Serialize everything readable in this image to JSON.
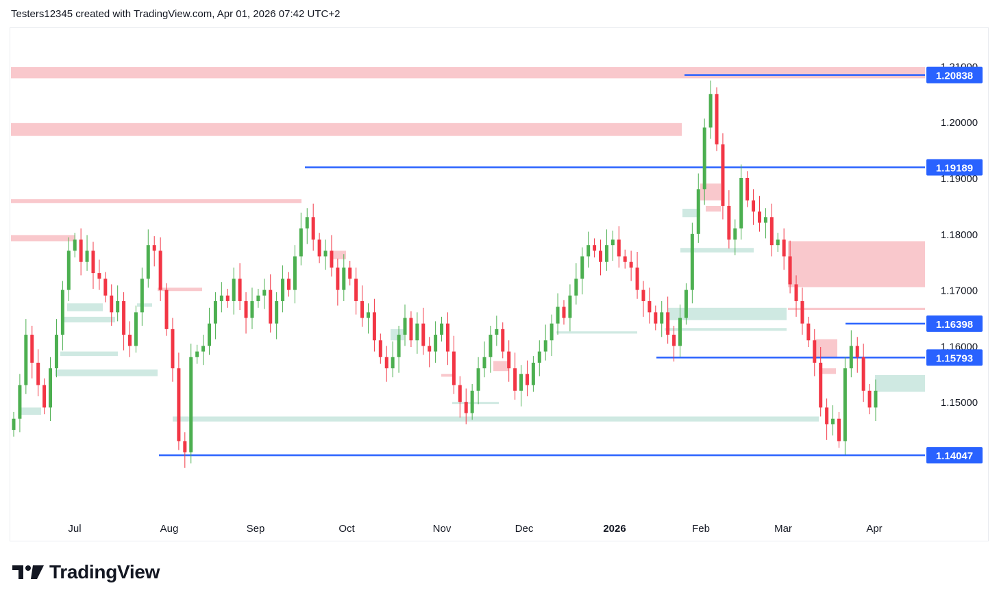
{
  "header": {
    "text": "Testers12345 created with TradingView.com, Apr 01, 2026 07:42 UTC+2"
  },
  "logo": {
    "text": "TradingView",
    "icon": "tradingview-logo-icon"
  },
  "colors": {
    "up": "#4caf50",
    "down": "#f23645",
    "level_line": "#2962ff",
    "supply_zone": "#f9c8cc",
    "demand_zone": "#cfe9e2",
    "axis_text": "#131722"
  },
  "chart_data": {
    "type": "candlestick",
    "symbol_scale": "price",
    "ylim": [
      1.135,
      1.215
    ],
    "y_ticks": [
      "1.21000",
      "1.20000",
      "1.19000",
      "1.18000",
      "1.17000",
      "1.16000",
      "1.15000"
    ],
    "x_ticks": [
      {
        "label": "Jul",
        "bold": false
      },
      {
        "label": "Aug",
        "bold": false
      },
      {
        "label": "Sep",
        "bold": false
      },
      {
        "label": "Oct",
        "bold": false
      },
      {
        "label": "Nov",
        "bold": false
      },
      {
        "label": "Dec",
        "bold": false
      },
      {
        "label": "2026",
        "bold": true
      },
      {
        "label": "Feb",
        "bold": false
      },
      {
        "label": "Mar",
        "bold": false
      },
      {
        "label": "Apr",
        "bold": false
      }
    ],
    "price_labels": [
      "1.20838",
      "1.19189",
      "1.16398",
      "1.15793",
      "1.14047"
    ],
    "levels": [
      {
        "label": "1.20838",
        "price": 1.20838,
        "start_date": "2026-01-28"
      },
      {
        "label": "1.19189",
        "price": 1.19189,
        "start_date": "2025-09-17"
      },
      {
        "label": "1.16398",
        "price": 1.16398,
        "start_date": "2026-03-25"
      },
      {
        "label": "1.15793",
        "price": 1.15793,
        "start_date": "2026-01-19"
      },
      {
        "label": "1.14047",
        "price": 1.14047,
        "start_date": "2025-08-01"
      }
    ],
    "close_series": [
      1.147,
      1.153,
      1.162,
      1.157,
      1.153,
      1.149,
      1.156,
      1.162,
      1.17,
      1.177,
      1.179,
      1.175,
      1.177,
      1.173,
      1.172,
      1.169,
      1.166,
      1.168,
      1.162,
      1.16,
      1.166,
      1.172,
      1.178,
      1.177,
      1.17,
      1.163,
      1.156,
      1.143,
      1.141,
      1.158,
      1.159,
      1.16,
      1.164,
      1.168,
      1.169,
      1.168,
      1.172,
      1.168,
      1.165,
      1.168,
      1.169,
      1.17,
      1.164,
      1.168,
      1.172,
      1.17,
      1.176,
      1.181,
      1.183,
      1.179,
      1.176,
      1.177,
      1.174,
      1.17,
      1.174,
      1.172,
      1.168,
      1.165,
      1.166,
      1.161,
      1.158,
      1.156,
      1.158,
      1.162,
      1.165,
      1.161,
      1.164,
      1.16,
      1.159,
      1.162,
      1.164,
      1.159,
      1.153,
      1.15,
      1.148,
      1.152,
      1.156,
      1.158,
      1.162,
      1.163,
      1.159,
      1.156,
      1.152,
      1.155,
      1.153,
      1.157,
      1.159,
      1.161,
      1.164,
      1.167,
      1.165,
      1.169,
      1.172,
      1.176,
      1.178,
      1.177,
      1.175,
      1.178,
      1.179,
      1.176,
      1.175,
      1.174,
      1.17,
      1.168,
      1.166,
      1.164,
      1.166,
      1.162,
      1.16,
      1.165,
      1.17,
      1.18,
      1.188,
      1.199,
      1.205,
      1.196,
      1.185,
      1.179,
      1.181,
      1.19,
      1.186,
      1.184,
      1.182,
      1.183,
      1.178,
      1.179,
      1.176,
      1.171,
      1.168,
      1.164,
      1.161,
      1.157,
      1.149,
      1.146,
      1.147,
      1.143,
      1.156,
      1.16,
      1.158,
      1.152,
      1.149,
      1.152
    ]
  }
}
